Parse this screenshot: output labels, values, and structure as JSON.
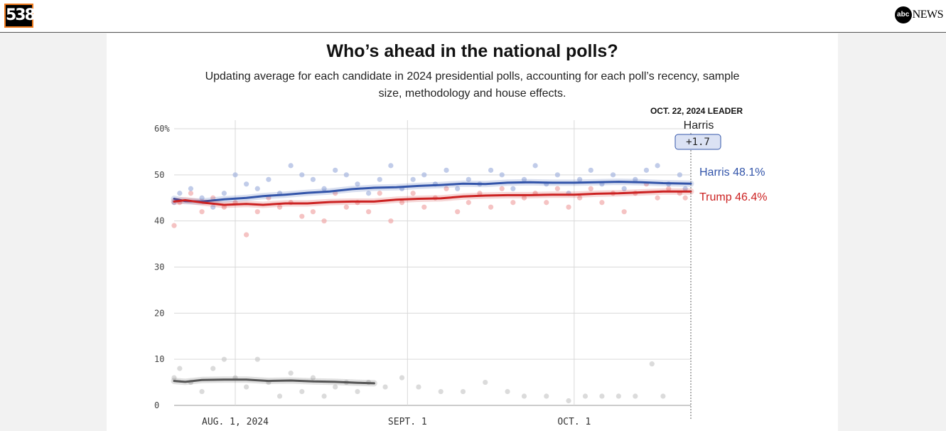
{
  "header": {
    "logo_text": "538",
    "partner_logo_small": "abc",
    "partner_logo_text": "NEWS"
  },
  "title": "Who’s ahead in the national polls?",
  "subtitle": "Updating average for each candidate in 2024 presidential polls, accounting for each poll’s recency, sample size, methodology and house effects.",
  "colors": {
    "harris": "#3355aa",
    "trump": "#cc2222",
    "other": "#555555",
    "harris_dots": "#9fb0dd",
    "trump_dots": "#efa3a3",
    "other_dots": "#c8c8c8",
    "grid": "#d9d9d9",
    "badge_fill": "#dbe2f4",
    "badge_stroke": "#3355aa"
  },
  "chart_data": {
    "type": "line",
    "title": "Who’s ahead in the national polls?",
    "x_domain": [
      "2024-07-21",
      "2024-10-22"
    ],
    "ylim": [
      0,
      60
    ],
    "y_ticks": [
      {
        "value": 0,
        "label": "0"
      },
      {
        "value": 10,
        "label": "10"
      },
      {
        "value": 20,
        "label": "20"
      },
      {
        "value": 30,
        "label": "30"
      },
      {
        "value": 40,
        "label": "40"
      },
      {
        "value": 50,
        "label": "50"
      },
      {
        "value": 60,
        "label": "60%"
      }
    ],
    "x_ticks": [
      {
        "date": "2024-08-01",
        "label": "AUG. 1, 2024"
      },
      {
        "date": "2024-09-01",
        "label": "SEPT. 1"
      },
      {
        "date": "2024-10-01",
        "label": "OCT. 1"
      }
    ],
    "grid": true,
    "leader": {
      "heading": "OCT. 22, 2024 LEADER",
      "name": "Harris",
      "margin": "+1.7"
    },
    "series": [
      {
        "name": "Harris",
        "end_label": "Harris 48.1%",
        "x": [
          "2024-07-21",
          "2024-07-23",
          "2024-07-26",
          "2024-07-30",
          "2024-08-03",
          "2024-08-06",
          "2024-08-10",
          "2024-08-14",
          "2024-08-18",
          "2024-08-22",
          "2024-08-26",
          "2024-08-30",
          "2024-09-03",
          "2024-09-07",
          "2024-09-11",
          "2024-09-15",
          "2024-09-19",
          "2024-09-23",
          "2024-09-27",
          "2024-10-01",
          "2024-10-05",
          "2024-10-09",
          "2024-10-13",
          "2024-10-17",
          "2024-10-22"
        ],
        "values": [
          44.8,
          44.3,
          44.2,
          44.7,
          45.0,
          45.4,
          45.7,
          46.1,
          46.4,
          46.9,
          47.2,
          47.3,
          47.6,
          47.8,
          48.1,
          48.0,
          48.3,
          48.4,
          48.3,
          48.3,
          48.4,
          48.5,
          48.4,
          48.2,
          48.1
        ]
      },
      {
        "name": "Trump",
        "end_label": "Trump 46.4%",
        "x": [
          "2024-07-21",
          "2024-07-23",
          "2024-07-26",
          "2024-07-30",
          "2024-08-03",
          "2024-08-06",
          "2024-08-10",
          "2024-08-14",
          "2024-08-18",
          "2024-08-22",
          "2024-08-26",
          "2024-08-30",
          "2024-09-03",
          "2024-09-07",
          "2024-09-11",
          "2024-09-15",
          "2024-09-19",
          "2024-09-23",
          "2024-09-27",
          "2024-10-01",
          "2024-10-05",
          "2024-10-09",
          "2024-10-13",
          "2024-10-17",
          "2024-10-22"
        ],
        "values": [
          44.2,
          44.5,
          44.0,
          43.5,
          43.7,
          43.5,
          43.8,
          43.8,
          44.1,
          44.2,
          44.2,
          44.6,
          44.8,
          44.9,
          45.3,
          45.5,
          45.6,
          45.6,
          45.7,
          45.7,
          45.9,
          46.0,
          46.2,
          46.4,
          46.4
        ]
      },
      {
        "name": "",
        "x": [
          "2024-07-21",
          "2024-07-23",
          "2024-07-26",
          "2024-07-30",
          "2024-08-03",
          "2024-08-07",
          "2024-08-11",
          "2024-08-15",
          "2024-08-19",
          "2024-08-23",
          "2024-08-26"
        ],
        "values": [
          5.3,
          5.1,
          5.5,
          5.6,
          5.6,
          5.3,
          5.4,
          5.2,
          5.1,
          4.9,
          4.8
        ]
      }
    ],
    "poll_dots": {
      "harris_x": [
        "2024-07-21",
        "2024-07-22",
        "2024-07-24",
        "2024-07-26",
        "2024-07-28",
        "2024-07-30",
        "2024-08-01",
        "2024-08-03",
        "2024-08-05",
        "2024-08-07",
        "2024-08-09",
        "2024-08-11",
        "2024-08-13",
        "2024-08-15",
        "2024-08-17",
        "2024-08-19",
        "2024-08-21",
        "2024-08-23",
        "2024-08-25",
        "2024-08-27",
        "2024-08-29",
        "2024-08-31",
        "2024-09-02",
        "2024-09-04",
        "2024-09-06",
        "2024-09-08",
        "2024-09-10",
        "2024-09-12",
        "2024-09-14",
        "2024-09-16",
        "2024-09-18",
        "2024-09-20",
        "2024-09-22",
        "2024-09-24",
        "2024-09-26",
        "2024-09-28",
        "2024-09-30",
        "2024-10-02",
        "2024-10-04",
        "2024-10-06",
        "2024-10-08",
        "2024-10-10",
        "2024-10-12",
        "2024-10-14",
        "2024-10-16",
        "2024-10-18",
        "2024-10-20",
        "2024-10-21"
      ],
      "harris_y": [
        44,
        46,
        47,
        45,
        43,
        46,
        50,
        48,
        47,
        49,
        46,
        52,
        50,
        49,
        47,
        51,
        50,
        48,
        46,
        49,
        52,
        47,
        49,
        50,
        48,
        51,
        47,
        49,
        48,
        51,
        50,
        47,
        49,
        52,
        48,
        50,
        46,
        49,
        51,
        48,
        50,
        47,
        49,
        51,
        52,
        48,
        50,
        47
      ],
      "trump_x": [
        "2024-07-21",
        "2024-07-22",
        "2024-07-24",
        "2024-07-26",
        "2024-07-28",
        "2024-07-30",
        "2024-08-01",
        "2024-08-03",
        "2024-08-05",
        "2024-08-07",
        "2024-08-09",
        "2024-08-11",
        "2024-08-13",
        "2024-08-15",
        "2024-08-17",
        "2024-08-19",
        "2024-08-21",
        "2024-08-23",
        "2024-08-25",
        "2024-08-27",
        "2024-08-29",
        "2024-08-31",
        "2024-09-02",
        "2024-09-04",
        "2024-09-06",
        "2024-09-08",
        "2024-09-10",
        "2024-09-12",
        "2024-09-14",
        "2024-09-16",
        "2024-09-18",
        "2024-09-20",
        "2024-09-22",
        "2024-09-24",
        "2024-09-26",
        "2024-09-28",
        "2024-09-30",
        "2024-10-02",
        "2024-10-04",
        "2024-10-06",
        "2024-10-08",
        "2024-10-10",
        "2024-10-12",
        "2024-10-14",
        "2024-10-16",
        "2024-10-18",
        "2024-10-20",
        "2024-10-21"
      ],
      "trump_y": [
        39,
        44,
        46,
        42,
        45,
        43,
        44,
        37,
        42,
        45,
        43,
        44,
        41,
        42,
        40,
        46,
        43,
        44,
        42,
        46,
        40,
        44,
        46,
        43,
        45,
        47,
        42,
        44,
        46,
        43,
        47,
        44,
        45,
        46,
        44,
        47,
        43,
        45,
        47,
        44,
        46,
        42,
        46,
        48,
        45,
        47,
        46,
        45
      ],
      "other_x": [
        "2024-07-21",
        "2024-07-22",
        "2024-07-24",
        "2024-07-26",
        "2024-07-28",
        "2024-07-30",
        "2024-08-01",
        "2024-08-03",
        "2024-08-05",
        "2024-08-07",
        "2024-08-09",
        "2024-08-11",
        "2024-08-13",
        "2024-08-15",
        "2024-08-17",
        "2024-08-19",
        "2024-08-21",
        "2024-08-23",
        "2024-08-25",
        "2024-08-28",
        "2024-08-31",
        "2024-09-03",
        "2024-09-07",
        "2024-09-11",
        "2024-09-15",
        "2024-09-19",
        "2024-09-22",
        "2024-09-26",
        "2024-09-30",
        "2024-10-03",
        "2024-10-06",
        "2024-10-09",
        "2024-10-12",
        "2024-10-15",
        "2024-10-17"
      ],
      "other_y": [
        6,
        8,
        5,
        3,
        8,
        10,
        6,
        4,
        10,
        5,
        2,
        7,
        3,
        6,
        2,
        4,
        5,
        3,
        5,
        4,
        6,
        4,
        3,
        3,
        5,
        3,
        2,
        2,
        1,
        2,
        2,
        2,
        2,
        9,
        2
      ]
    }
  }
}
